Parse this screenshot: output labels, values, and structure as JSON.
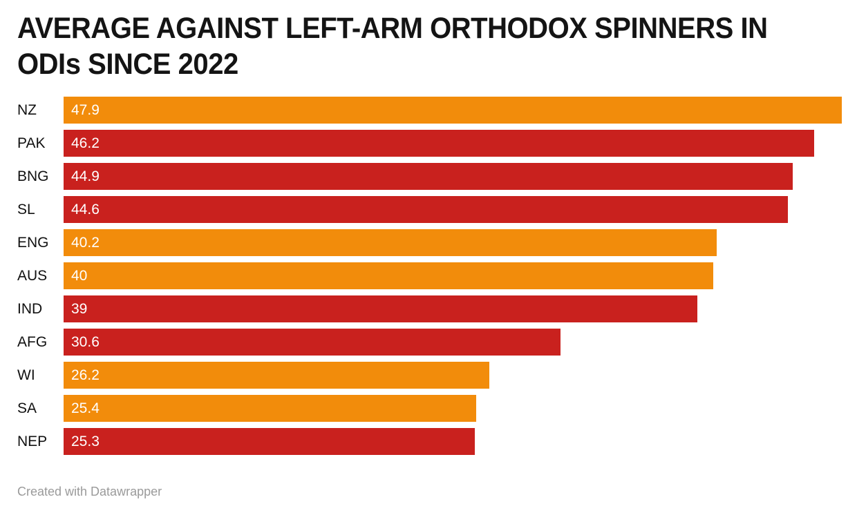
{
  "header": {
    "title_lines": [
      "AVERAGE AGAINST LEFT-ARM ORTHODOX SPINNERS IN",
      "ODIs SINCE 2022"
    ]
  },
  "footer": {
    "credit": "Created with Datawrapper"
  },
  "colors": {
    "orange": "#F28C0B",
    "red": "#C9211E",
    "title_text": "#141414",
    "category_text": "#111111",
    "value_text": "#FFFFFF",
    "credit_text": "#9A9A9A",
    "background": "#FFFFFF"
  },
  "chart_data": {
    "type": "bar",
    "orientation": "horizontal",
    "title": "AVERAGE AGAINST LEFT-ARM ORTHODOX SPINNERS IN ODIs SINCE 2022",
    "xlabel": "",
    "ylabel": "",
    "xlim": [
      0,
      47.9
    ],
    "grid": false,
    "legend": "none",
    "value_label_position": "inside-start",
    "categories": [
      "NZ",
      "PAK",
      "BNG",
      "SL",
      "ENG",
      "AUS",
      "IND",
      "AFG",
      "WI",
      "SA",
      "NEP"
    ],
    "values": [
      47.9,
      46.2,
      44.9,
      44.6,
      40.2,
      40,
      39,
      30.6,
      26.2,
      25.4,
      25.3
    ],
    "value_labels": [
      "47.9",
      "46.2",
      "44.9",
      "44.6",
      "40.2",
      "40",
      "39",
      "30.6",
      "26.2",
      "25.4",
      "25.3"
    ],
    "bar_color_names": [
      "orange",
      "red",
      "red",
      "red",
      "orange",
      "orange",
      "red",
      "red",
      "orange",
      "orange",
      "red"
    ]
  }
}
